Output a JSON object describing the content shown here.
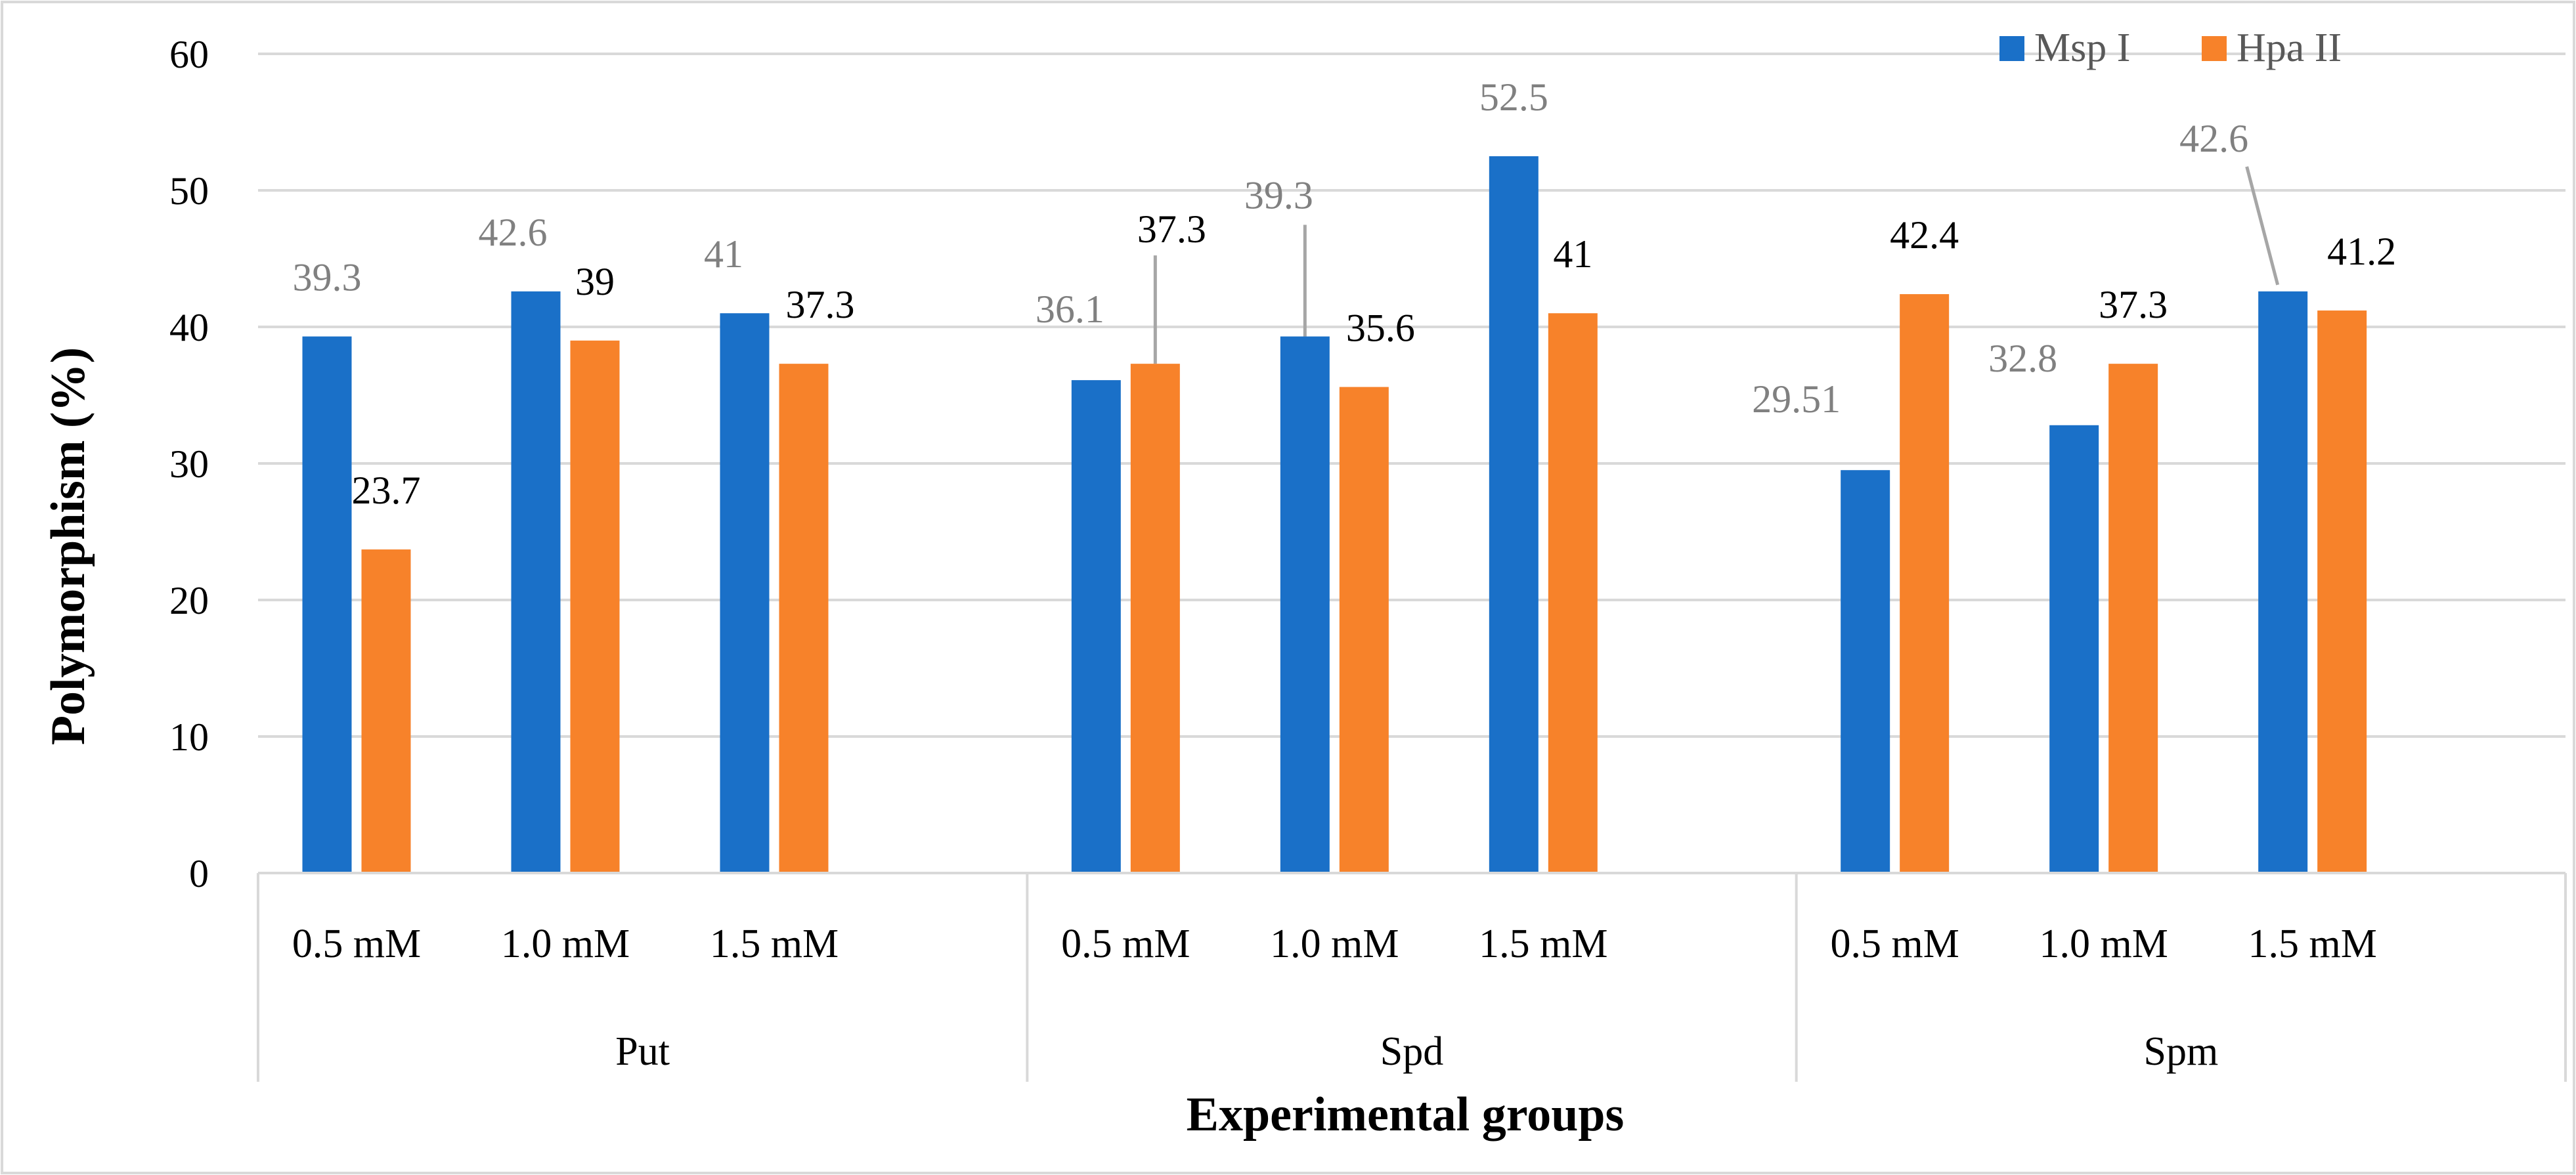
{
  "chart_data": {
    "type": "bar",
    "xlabel": "Experimental groups",
    "ylabel": "Polymorphism (%)",
    "ylim": [
      0,
      60
    ],
    "yticks": [
      "0",
      "10",
      "20",
      "30",
      "40",
      "50",
      "60"
    ],
    "grid": true,
    "legend_position": "top-right",
    "groups": [
      {
        "name": "Put",
        "categories": [
          "0.5 mM",
          "1.0 mM",
          "1.5 mM"
        ]
      },
      {
        "name": "Spd",
        "categories": [
          "0.5 mM",
          "1.0 mM",
          "1.5 mM"
        ]
      },
      {
        "name": "Spm",
        "categories": [
          "0.5 mM",
          "1.0 mM",
          "1.5 mM"
        ]
      }
    ],
    "series": [
      {
        "name": "Msp I",
        "color": "#1A70C8",
        "values": [
          39.3,
          42.6,
          41,
          36.1,
          39.3,
          52.5,
          29.51,
          32.8,
          42.6
        ],
        "labels": [
          "39.3",
          "42.6",
          "41",
          "36.1",
          "39.3",
          "52.5",
          "29.51",
          "32.8",
          "42.6"
        ]
      },
      {
        "name": "Hpa II",
        "color": "#F7822A",
        "values": [
          23.7,
          39,
          37.3,
          37.3,
          35.6,
          41,
          42.4,
          37.3,
          41.2
        ],
        "labels": [
          "23.7",
          "39",
          "37.3",
          "37.3",
          "35.6",
          "41",
          "42.4",
          "37.3",
          "41.2"
        ]
      }
    ]
  }
}
